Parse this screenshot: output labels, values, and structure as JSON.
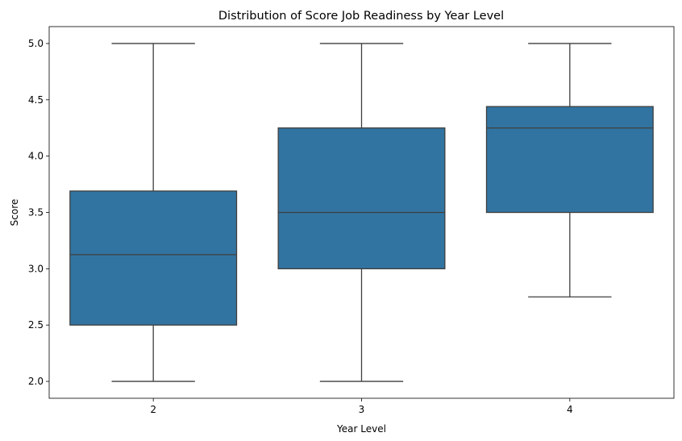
{
  "chart_data": {
    "type": "box",
    "title": "Distribution of Score Job Readiness by Year Level",
    "xlabel": "Year Level",
    "ylabel": "Score",
    "categories": [
      "2",
      "3",
      "4"
    ],
    "boxes": [
      {
        "category": "2",
        "whisker_low": 2.0,
        "q1": 2.5,
        "median": 3.125,
        "q3": 3.69,
        "whisker_high": 5.0
      },
      {
        "category": "3",
        "whisker_low": 2.0,
        "q1": 3.0,
        "median": 3.5,
        "q3": 4.25,
        "whisker_high": 5.0
      },
      {
        "category": "4",
        "whisker_low": 2.75,
        "q1": 3.5,
        "median": 4.25,
        "q3": 4.44,
        "whisker_high": 5.0
      }
    ],
    "ylim": [
      1.85,
      5.15
    ],
    "yticks": [
      "2.0",
      "2.5",
      "3.0",
      "3.5",
      "4.0",
      "4.5",
      "5.0"
    ],
    "grid": false,
    "box_color": "#3274a1",
    "line_color": "#3f3f3f"
  }
}
